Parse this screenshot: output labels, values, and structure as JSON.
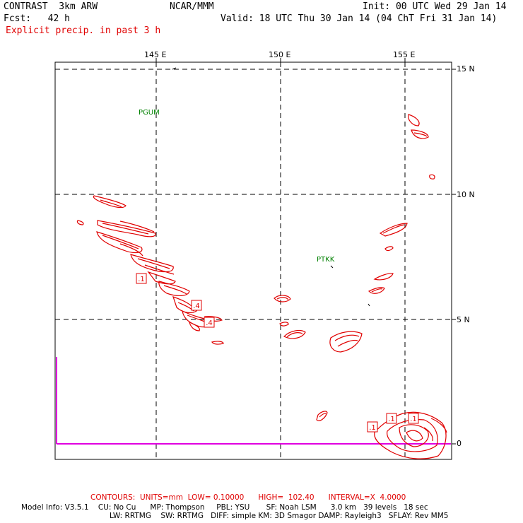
{
  "header": {
    "model": "CONTRAST  3km ARW",
    "center": "NCAR/MMM",
    "init": "Init: 00 UTC Wed 29 Jan 14",
    "fcst": "Fcst:   42 h",
    "valid": "Valid: 18 UTC Thu 30 Jan 14 (04 ChT Fri 31 Jan 14)",
    "field": "Explicit precip. in past 3 h"
  },
  "axes": {
    "lon_labels": [
      "145 E",
      "150 E",
      "155 E"
    ],
    "lat_labels": [
      "15 N",
      "10 N",
      "5 N",
      "0"
    ]
  },
  "stations": [
    {
      "id": "PGUM"
    },
    {
      "id": "PTKK"
    }
  ],
  "contour_labels": [
    ".1",
    ".4",
    ".4",
    ".1",
    ".1",
    ".1"
  ],
  "footer": {
    "contours": "CONTOURS:  UNITS=mm  LOW= 0.10000      HIGH=  102.40      INTERVAL=X  4.0000",
    "model_info_1": "Model Info: V3.5.1    CU: No Cu      MP: Thompson     PBL: YSU       SF: Noah LSM      3.0 km   39 levels   18 sec",
    "model_info_2": "LW: RRTMG    SW: RRTMG   DIFF: simple KM: 3D Smagor DAMP: Rayleigh3   SFLAY: Rev MM5"
  },
  "colors": {
    "contour": "#e00000",
    "station": "#008000",
    "precip_bar": "#e000e0"
  }
}
